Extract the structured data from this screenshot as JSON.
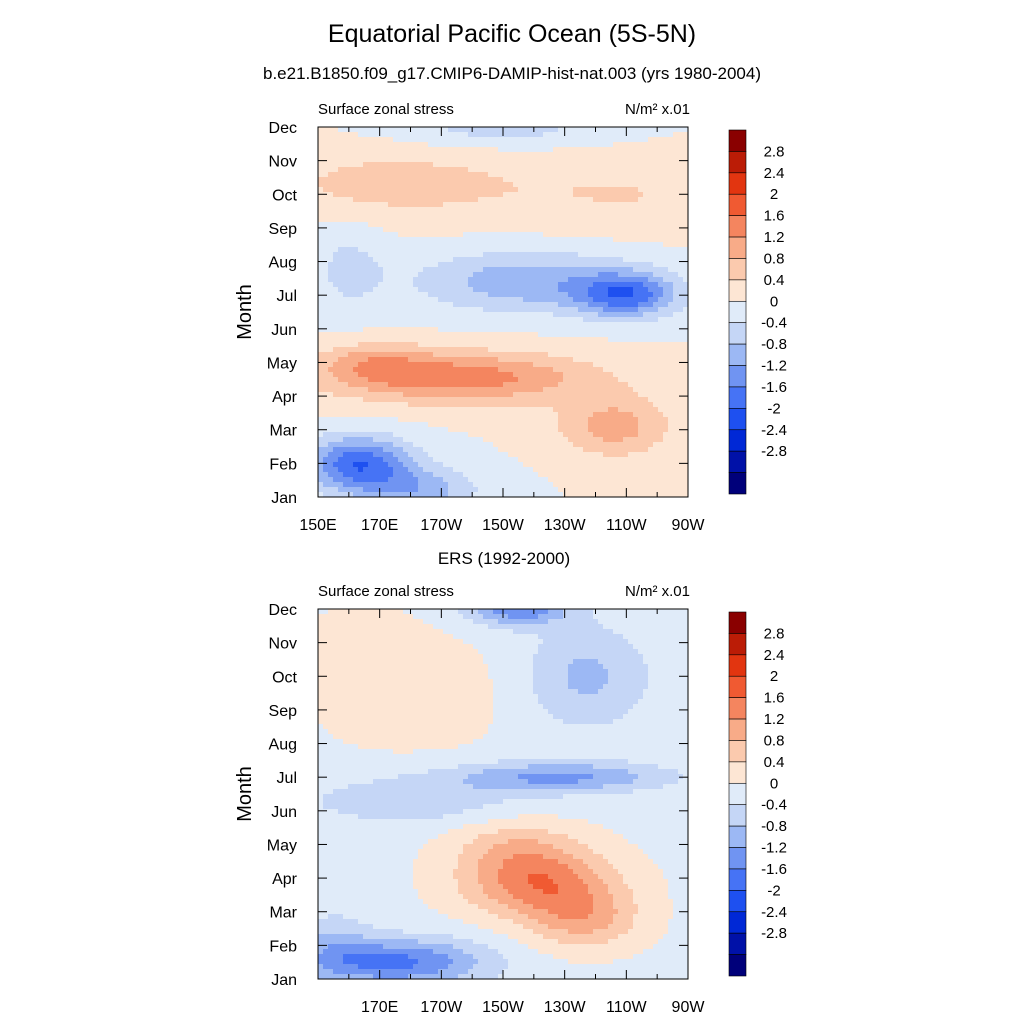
{
  "page": {
    "title": "Equatorial Pacific Ocean (5S-5N)",
    "subtitle": "b.e21.B1850.f09_g17.CMIP6-DAMIP-hist-nat.003 (yrs 1980-2004)"
  },
  "colorbar": {
    "levels": [
      -2.8,
      -2.4,
      -2,
      -1.6,
      -1.2,
      -0.8,
      -0.4,
      0,
      0.4,
      0.8,
      1.2,
      1.6,
      2,
      2.4,
      2.8
    ],
    "labels": [
      "2.8",
      "2.4",
      "2",
      "1.6",
      "1.2",
      "0.8",
      "0.4",
      "0",
      "-0.4",
      "-0.8",
      "-1.2",
      "-1.6",
      "-2",
      "-2.4",
      "-2.8"
    ],
    "colors": [
      "#00007a",
      "#0011a8",
      "#0028d6",
      "#1e50f0",
      "#4673f5",
      "#7094f2",
      "#9cb8f4",
      "#c5d6f6",
      "#e0ebf9",
      "#fde6d4",
      "#fbcaae",
      "#f8ab88",
      "#f4855f",
      "#f05a32",
      "#e23510",
      "#bb1c06",
      "#8a0000"
    ]
  },
  "chart_data": [
    {
      "type": "heatmap",
      "title": "",
      "left_label": "Surface zonal stress",
      "right_label": "N/m² x.01",
      "xlabel": "",
      "ylabel": "Month",
      "x_ticks": [
        "150E",
        "170E",
        "170W",
        "150W",
        "130W",
        "110W",
        "90W"
      ],
      "y_ticks": [
        "Jan",
        "Feb",
        "Mar",
        "Apr",
        "May",
        "Jun",
        "Jul",
        "Aug",
        "Sep",
        "Oct",
        "Nov",
        "Dec"
      ],
      "xlim": [
        150,
        270
      ],
      "ylim": [
        1,
        12
      ],
      "x": [
        150,
        155,
        160,
        165,
        170,
        175,
        180,
        185,
        190,
        195,
        200,
        205,
        210,
        215,
        220,
        225,
        230,
        235,
        240,
        245,
        250,
        255,
        260,
        265,
        270
      ],
      "y": [
        1,
        2,
        3,
        4,
        5,
        6,
        7,
        8,
        9,
        10,
        11,
        12
      ],
      "z_fn": "model"
    },
    {
      "type": "heatmap",
      "title": "ERS (1992-2000)",
      "left_label": "Surface zonal stress",
      "right_label": "N/m² x.01",
      "xlabel": "",
      "ylabel": "Month",
      "x_ticks": [
        "170E",
        "170W",
        "150W",
        "130W",
        "110W",
        "90W"
      ],
      "y_ticks": [
        "Jan",
        "Feb",
        "Mar",
        "Apr",
        "May",
        "Jun",
        "Jul",
        "Aug",
        "Sep",
        "Oct",
        "Nov",
        "Dec"
      ],
      "xlim": [
        150,
        270
      ],
      "ylim": [
        1,
        12
      ],
      "x": [
        150,
        155,
        160,
        165,
        170,
        175,
        180,
        185,
        190,
        195,
        200,
        205,
        210,
        215,
        220,
        225,
        230,
        235,
        240,
        245,
        250,
        255,
        260,
        265,
        270
      ],
      "y": [
        1,
        2,
        3,
        4,
        5,
        6,
        7,
        8,
        9,
        10,
        11,
        12
      ],
      "z_fn": "obs"
    }
  ]
}
